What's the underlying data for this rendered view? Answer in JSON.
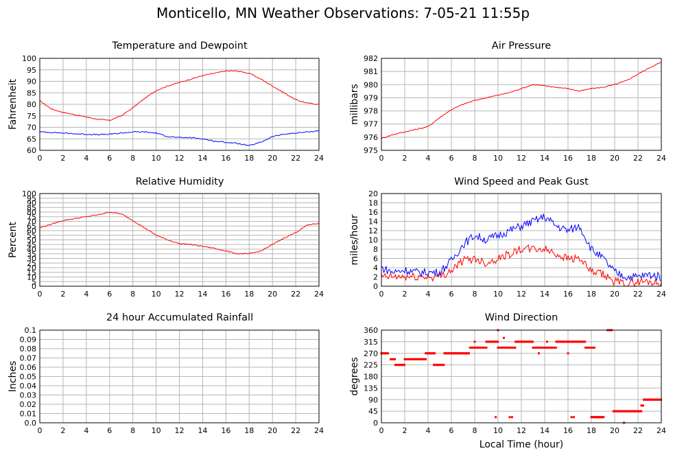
{
  "title": "Monticello, MN Weather Observations: 7-05-21 11:55p",
  "xlabel_bottom": "Local Time (hour)",
  "colors": {
    "red": "#ff0000",
    "blue": "#0000ff",
    "grid": "#b5b5b5"
  },
  "chart_data": [
    {
      "id": "temp",
      "type": "line",
      "title": "Temperature and Dewpoint",
      "ylabel": "Fahrenheit",
      "xlim": [
        0,
        24
      ],
      "ylim": [
        60,
        100
      ],
      "xticks": [
        0,
        2,
        4,
        6,
        8,
        10,
        12,
        14,
        16,
        18,
        20,
        22,
        24
      ],
      "yticks": [
        "60",
        "65",
        "70",
        "75",
        "80",
        "85",
        "90",
        "95",
        "100"
      ],
      "grid": true,
      "series": [
        {
          "color": "red",
          "x": [
            0,
            1,
            2,
            3,
            4,
            5,
            6,
            7,
            8,
            9,
            10,
            11,
            12,
            13,
            14,
            15,
            16,
            17,
            18,
            19,
            20,
            21,
            22,
            23,
            24
          ],
          "y": [
            81.5,
            78,
            76.5,
            75.5,
            74.5,
            73.5,
            73,
            75,
            78.5,
            82.5,
            86,
            88,
            89.5,
            91,
            92.5,
            93.5,
            94.5,
            94.5,
            93.5,
            91,
            88,
            85,
            82,
            80.5,
            80
          ]
        },
        {
          "color": "blue",
          "x": [
            0,
            1,
            2,
            3,
            4,
            5,
            6,
            7,
            8,
            9,
            10,
            11,
            12,
            13,
            14,
            15,
            16,
            17,
            18,
            19,
            20,
            21,
            22,
            23,
            24
          ],
          "y": [
            68,
            67.8,
            67.5,
            67.2,
            67,
            66.8,
            67,
            67.5,
            68,
            68,
            67.5,
            66,
            65.5,
            65.5,
            65,
            64,
            63.5,
            63,
            62,
            63.5,
            66,
            67,
            67.5,
            68,
            68.5
          ]
        }
      ]
    },
    {
      "id": "pressure",
      "type": "line",
      "title": "Air Pressure",
      "ylabel": "millibars",
      "xlim": [
        0,
        24
      ],
      "ylim": [
        975,
        982
      ],
      "xticks": [
        0,
        2,
        4,
        6,
        8,
        10,
        12,
        14,
        16,
        18,
        20,
        22,
        24
      ],
      "yticks": [
        "975",
        "976",
        "977",
        "978",
        "979",
        "980",
        "981",
        "982"
      ],
      "grid": true,
      "series": [
        {
          "color": "red",
          "x": [
            0,
            1,
            2,
            3,
            4,
            5,
            6,
            7,
            8,
            9,
            10,
            11,
            12,
            13,
            14,
            15,
            16,
            17,
            18,
            19,
            20,
            21,
            22,
            23,
            24
          ],
          "y": [
            975.9,
            976.2,
            976.4,
            976.6,
            976.8,
            977.5,
            978.1,
            978.5,
            978.8,
            979.0,
            979.2,
            979.4,
            979.7,
            980.0,
            979.9,
            979.8,
            979.7,
            979.5,
            979.7,
            979.8,
            980.0,
            980.3,
            980.8,
            981.3,
            981.7
          ]
        }
      ]
    },
    {
      "id": "humidity",
      "type": "line",
      "title": "Relative Humidity",
      "ylabel": "Percent",
      "xlim": [
        0,
        24
      ],
      "ylim": [
        0,
        100
      ],
      "xticks": [
        0,
        2,
        4,
        6,
        8,
        10,
        12,
        14,
        16,
        18,
        20,
        22,
        24
      ],
      "yticks": [
        "0",
        "5",
        "10",
        "15",
        "20",
        "25",
        "30",
        "35",
        "40",
        "45",
        "50",
        "55",
        "60",
        "65",
        "70",
        "75",
        "80",
        "85",
        "90",
        "95",
        "100"
      ],
      "grid": true,
      "series": [
        {
          "color": "red",
          "x": [
            0,
            1,
            2,
            3,
            4,
            5,
            6,
            7,
            8,
            9,
            10,
            11,
            12,
            13,
            14,
            15,
            16,
            17,
            18,
            19,
            20,
            21,
            22,
            23,
            24
          ],
          "y": [
            63,
            67,
            71,
            73,
            75,
            77,
            80,
            78,
            71,
            63,
            55,
            50,
            46,
            45,
            43,
            41,
            38,
            35,
            35,
            38,
            45,
            52,
            58,
            66,
            68
          ]
        }
      ]
    },
    {
      "id": "wind",
      "type": "line",
      "title": "Wind Speed and Peak Gust",
      "ylabel": "miles/hour",
      "xlim": [
        0,
        24
      ],
      "ylim": [
        0,
        20
      ],
      "xticks": [
        0,
        2,
        4,
        6,
        8,
        10,
        12,
        14,
        16,
        18,
        20,
        22,
        24
      ],
      "yticks": [
        "0",
        "2",
        "4",
        "6",
        "8",
        "10",
        "12",
        "14",
        "16",
        "18",
        "20"
      ],
      "grid": true,
      "series": [
        {
          "color": "blue",
          "x": [
            0,
            1,
            2,
            3,
            4,
            5,
            6,
            7,
            8,
            9,
            10,
            11,
            12,
            13,
            14,
            15,
            16,
            17,
            18,
            19,
            20,
            21,
            22,
            23,
            24
          ],
          "y": [
            4,
            3,
            3.5,
            3,
            3,
            3,
            5.5,
            9,
            11,
            10,
            11,
            12,
            13,
            14,
            15,
            13,
            12,
            13,
            8,
            6,
            3,
            2,
            2,
            2.5,
            2
          ]
        },
        {
          "color": "red",
          "x": [
            0,
            1,
            2,
            3,
            4,
            5,
            6,
            7,
            8,
            9,
            10,
            11,
            12,
            13,
            14,
            15,
            16,
            17,
            18,
            19,
            20,
            21,
            22,
            23,
            24
          ],
          "y": [
            2,
            2,
            2,
            2,
            2,
            2,
            3.5,
            5.5,
            6,
            5,
            6,
            7,
            8,
            8,
            8,
            7,
            6,
            6,
            3,
            2.5,
            1,
            0.5,
            1,
            1,
            0.5
          ]
        }
      ]
    },
    {
      "id": "rain",
      "type": "line",
      "title": "24 hour Accumulated Rainfall",
      "ylabel": "Inches",
      "xlim": [
        0,
        24
      ],
      "ylim": [
        0,
        0.1
      ],
      "xticks": [
        0,
        2,
        4,
        6,
        8,
        10,
        12,
        14,
        16,
        18,
        20,
        22,
        24
      ],
      "yticks": [
        "0.0",
        "0.01",
        "0.02",
        "0.03",
        "0.04",
        "0.05",
        "0.06",
        "0.07",
        "0.08",
        "0.09",
        "0.1"
      ],
      "grid": true,
      "series": [
        {
          "color": "red",
          "x": [
            0,
            24
          ],
          "y": [
            0,
            0
          ]
        }
      ]
    },
    {
      "id": "direction",
      "type": "scatter",
      "title": "Wind Direction",
      "ylabel": "degrees",
      "xlim": [
        0,
        24
      ],
      "ylim": [
        0,
        360
      ],
      "xticks": [
        0,
        2,
        4,
        6,
        8,
        10,
        12,
        14,
        16,
        18,
        20,
        22,
        24
      ],
      "yticks": [
        "0",
        "45",
        "90",
        "135",
        "180",
        "225",
        "270",
        "315",
        "360"
      ],
      "grid": true,
      "segments": [
        {
          "x0": 0.0,
          "x1": 0.6,
          "y": 270
        },
        {
          "x0": 0.8,
          "x1": 1.2,
          "y": 247
        },
        {
          "x0": 1.2,
          "x1": 2.0,
          "y": 225
        },
        {
          "x0": 2.0,
          "x1": 2.4,
          "y": 247
        },
        {
          "x0": 2.4,
          "x1": 3.8,
          "y": 247
        },
        {
          "x0": 3.8,
          "x1": 4.6,
          "y": 270
        },
        {
          "x0": 4.5,
          "x1": 5.4,
          "y": 225
        },
        {
          "x0": 5.4,
          "x1": 7.5,
          "y": 270
        },
        {
          "x0": 7.6,
          "x1": 9.0,
          "y": 292
        },
        {
          "x0": 9.0,
          "x1": 10.0,
          "y": 315
        },
        {
          "x0": 10.0,
          "x1": 11.5,
          "y": 292
        },
        {
          "x0": 11.5,
          "x1": 13.0,
          "y": 315
        },
        {
          "x0": 13.0,
          "x1": 15.0,
          "y": 292
        },
        {
          "x0": 15.0,
          "x1": 17.5,
          "y": 315
        },
        {
          "x0": 17.5,
          "x1": 18.3,
          "y": 292
        },
        {
          "x0": 18.0,
          "x1": 19.1,
          "y": 22
        },
        {
          "x0": 19.4,
          "x1": 19.8,
          "y": 360
        },
        {
          "x0": 19.9,
          "x1": 22.3,
          "y": 45
        },
        {
          "x0": 22.3,
          "x1": 22.5,
          "y": 67
        },
        {
          "x0": 22.5,
          "x1": 24.0,
          "y": 90
        }
      ],
      "points": [
        {
          "x": 9.8,
          "y": 22
        },
        {
          "x": 10.0,
          "y": 360
        },
        {
          "x": 10.5,
          "y": 330
        },
        {
          "x": 11.0,
          "y": 22
        },
        {
          "x": 11.2,
          "y": 22
        },
        {
          "x": 16.3,
          "y": 22
        },
        {
          "x": 16.5,
          "y": 22
        },
        {
          "x": 20.8,
          "y": 0
        },
        {
          "x": 8.0,
          "y": 315
        },
        {
          "x": 13.5,
          "y": 270
        },
        {
          "x": 16.0,
          "y": 270
        },
        {
          "x": 14.2,
          "y": 315
        }
      ]
    }
  ]
}
